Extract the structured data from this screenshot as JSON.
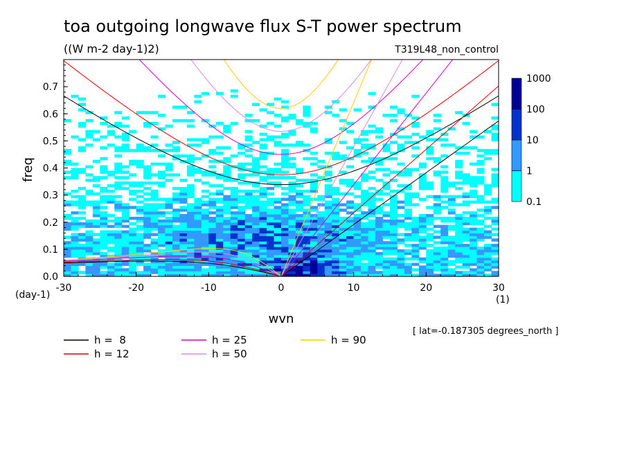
{
  "chart_data": {
    "type": "heatmap",
    "title": "toa outgoing longwave flux S-T power spectrum",
    "units": "((W m-2 day-1)2)",
    "run_name": "T319L48_non_control",
    "xlabel": "wvn",
    "ylabel": "freq",
    "x_units": "(1)",
    "y_units": "(day-1)",
    "xlim": [
      -30,
      30
    ],
    "ylim": [
      0,
      0.8
    ],
    "x_ticks": [
      "-30",
      "-20",
      "-10",
      "0",
      "10",
      "20",
      "30"
    ],
    "y_ticks": [
      "0.0",
      "0.1",
      "0.2",
      "0.3",
      "0.4",
      "0.5",
      "0.6",
      "0.7"
    ],
    "annotation": "[ lat=-0.187305 degrees_north ]",
    "colorbar": {
      "levels": [
        "0.1",
        "1",
        "10",
        "100",
        "1000"
      ],
      "colors": [
        "#00ffff",
        "#3399ff",
        "#0033cc",
        "#000099",
        "#4400aa"
      ]
    },
    "dispersion_curves": [
      {
        "label": "h =  8",
        "h": 8,
        "color": "#000000"
      },
      {
        "label": "h = 12",
        "h": 12,
        "color": "#dd0000"
      },
      {
        "label": "h = 25",
        "h": 25,
        "color": "#cc00cc"
      },
      {
        "label": "h = 50",
        "h": 50,
        "color": "#dd88dd"
      },
      {
        "label": "h = 90",
        "h": 90,
        "color": "#ffcc00"
      }
    ],
    "grid": false
  }
}
